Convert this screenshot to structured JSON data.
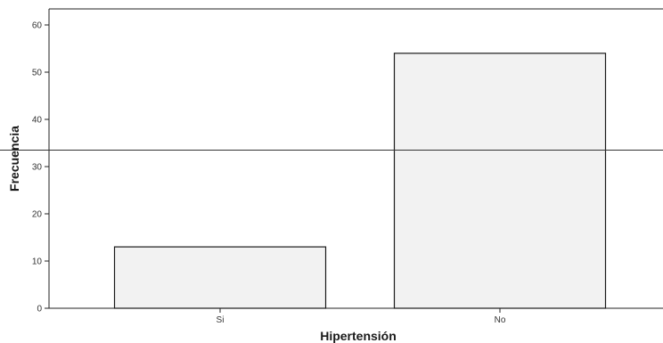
{
  "chart_data": {
    "type": "bar",
    "title": "",
    "xlabel": "Hipertensión",
    "ylabel": "Frecuencia",
    "categories": [
      "Si",
      "No"
    ],
    "values": [
      13,
      54
    ],
    "ylim": [
      0,
      63
    ],
    "yticks": [
      "0",
      "10",
      "20",
      "30",
      "40",
      "50",
      "60"
    ],
    "grid": false,
    "legend": "none",
    "reference_line_y": 33.5,
    "colors": {
      "bar_fill": "#f2f2f2",
      "bar_stroke": "#1a1a1a",
      "axis": "#222222"
    }
  }
}
